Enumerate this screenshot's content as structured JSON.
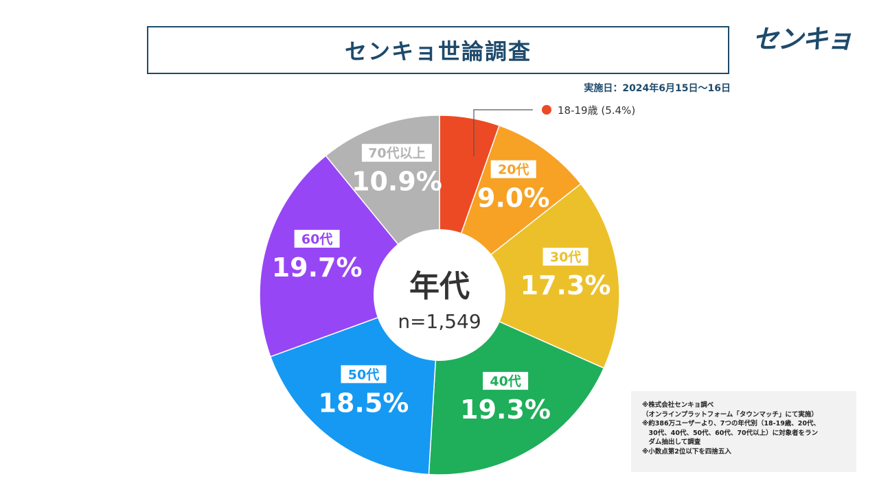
{
  "header": {
    "title": "センキョ世論調査",
    "logo_text": "センキョ",
    "date": "実施日：2024年6月15日〜16日"
  },
  "chart_data": {
    "type": "pie",
    "donut": true,
    "center_label": "年代",
    "center_sublabel": "n=1,549",
    "slices": [
      {
        "label": "18-19歳",
        "value": 5.4,
        "display": "5.4%",
        "color": "#ec4a24",
        "legend": "18-19歳 (5.4%)"
      },
      {
        "label": "20代",
        "value": 9.0,
        "display": "9.0%",
        "color": "#f7a125"
      },
      {
        "label": "30代",
        "value": 17.3,
        "display": "17.3%",
        "color": "#ecc02a"
      },
      {
        "label": "40代",
        "value": 19.3,
        "display": "19.3%",
        "color": "#1fae5a"
      },
      {
        "label": "50代",
        "value": 18.5,
        "display": "18.5%",
        "color": "#1699f3"
      },
      {
        "label": "60代",
        "value": 19.7,
        "display": "19.7%",
        "color": "#9746f5"
      },
      {
        "label": "70代以上",
        "value": 10.9,
        "display": "10.9%",
        "color": "#b3b3b3"
      }
    ]
  },
  "notes": [
    "※株式会社センキョ調べ",
    "（オンラインプラットフォーム「タウンマッチ」にて実施）",
    "※約386万ユーザーより、7つの年代別（18-19歳、20代、",
    "　30代、40代、50代、60代、70代以上）に対象者をラン",
    "　ダム抽出して調査",
    "※小数点第2位以下を四捨五入"
  ]
}
